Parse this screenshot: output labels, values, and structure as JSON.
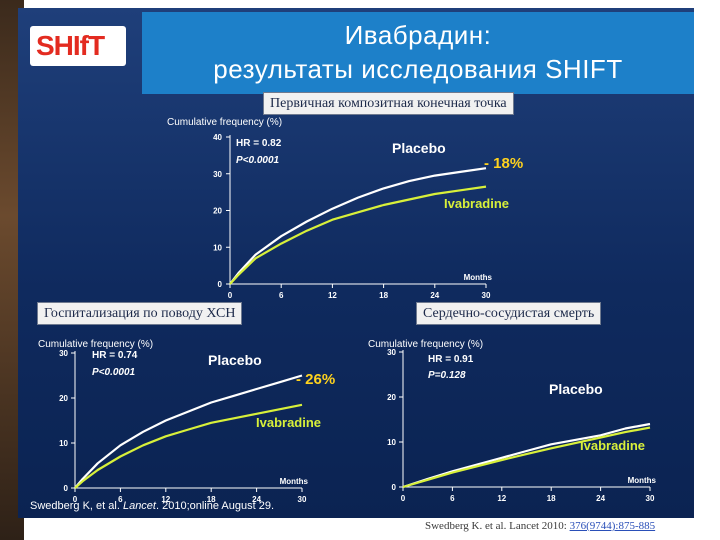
{
  "slide": {
    "logo_text": "SHIfT",
    "title_line1": "Ивабрадин:",
    "title_line2": "результаты исследования SHIFT",
    "citation_left_prefix": "Swedberg K, et al. ",
    "citation_left_journal": "Lancet",
    "citation_left_suffix": ". 2010;online August 29.",
    "citation_bottom_prefix": "Swedberg K. et al. Lancet 2010: ",
    "citation_bottom_link": "376(9744):875-885",
    "colors": {
      "placebo": "#ffffff",
      "ivabradine": "#d8f03a",
      "reduction": "#ffd21e",
      "slide_bg": "#0f2a5e",
      "title_band": "#1d80c9"
    }
  },
  "chart_data": [
    {
      "type": "line",
      "panel_label": "Первичная композитная конечная точка",
      "ylabel": "Cumulative frequency (%)",
      "xlabel": "Months",
      "xlim": [
        0,
        30
      ],
      "ylim": [
        0,
        40
      ],
      "x_ticks": [
        0,
        6,
        12,
        18,
        24,
        30
      ],
      "y_ticks": [
        0,
        10,
        20,
        30,
        40
      ],
      "hr_text": "HR = 0.82",
      "p_text": "P<0.0001",
      "reduction_text": "- 18%",
      "series": [
        {
          "name": "Placebo",
          "x": [
            0,
            1,
            3,
            6,
            9,
            12,
            15,
            18,
            21,
            24,
            27,
            30
          ],
          "y": [
            0,
            3,
            8,
            13,
            17,
            20.5,
            23.5,
            26,
            28,
            29.5,
            30.5,
            31.5
          ]
        },
        {
          "name": "Ivabradine",
          "x": [
            0,
            1,
            3,
            6,
            9,
            12,
            15,
            18,
            21,
            24,
            27,
            30
          ],
          "y": [
            0,
            2.5,
            7,
            11,
            14.5,
            17.5,
            19.5,
            21.5,
            23,
            24.5,
            25.5,
            26.5
          ]
        }
      ]
    },
    {
      "type": "line",
      "panel_label": "Госпитализация по поводу ХСН",
      "ylabel": "Cumulative frequency (%)",
      "xlabel": "Months",
      "xlim": [
        0,
        30
      ],
      "ylim": [
        0,
        30
      ],
      "x_ticks": [
        0,
        6,
        12,
        18,
        24,
        30
      ],
      "y_ticks": [
        0,
        10,
        20,
        30
      ],
      "hr_text": "HR = 0.74",
      "p_text": "P<0.0001",
      "reduction_text": "- 26%",
      "series": [
        {
          "name": "Placebo",
          "x": [
            0,
            1,
            3,
            6,
            9,
            12,
            15,
            18,
            21,
            24,
            27,
            30
          ],
          "y": [
            0,
            2,
            5.5,
            9.5,
            12.5,
            15,
            17,
            19,
            20.5,
            22,
            23.5,
            25
          ]
        },
        {
          "name": "Ivabradine",
          "x": [
            0,
            1,
            3,
            6,
            9,
            12,
            15,
            18,
            21,
            24,
            27,
            30
          ],
          "y": [
            0,
            1.5,
            4,
            7,
            9.5,
            11.5,
            13,
            14.5,
            15.5,
            16.5,
            17.5,
            18.5
          ]
        }
      ]
    },
    {
      "type": "line",
      "panel_label": "Сердечно-сосудистая смерть",
      "ylabel": "Cumulative frequency (%)",
      "xlabel": "Months",
      "xlim": [
        0,
        30
      ],
      "ylim": [
        0,
        30
      ],
      "x_ticks": [
        0,
        6,
        12,
        18,
        24,
        30
      ],
      "y_ticks": [
        0,
        10,
        20,
        30
      ],
      "hr_text": "HR = 0.91",
      "p_text": "P=0.128",
      "reduction_text": "",
      "series": [
        {
          "name": "Placebo",
          "x": [
            0,
            3,
            6,
            9,
            12,
            15,
            18,
            21,
            24,
            27,
            30
          ],
          "y": [
            0,
            1.8,
            3.5,
            5,
            6.5,
            8,
            9.5,
            10.5,
            11.5,
            13,
            14
          ]
        },
        {
          "name": "Ivabradine",
          "x": [
            0,
            3,
            6,
            9,
            12,
            15,
            18,
            21,
            24,
            27,
            30
          ],
          "y": [
            0,
            1.6,
            3.2,
            4.6,
            6,
            7.3,
            8.6,
            9.8,
            11,
            12.2,
            13.2
          ]
        }
      ]
    }
  ]
}
